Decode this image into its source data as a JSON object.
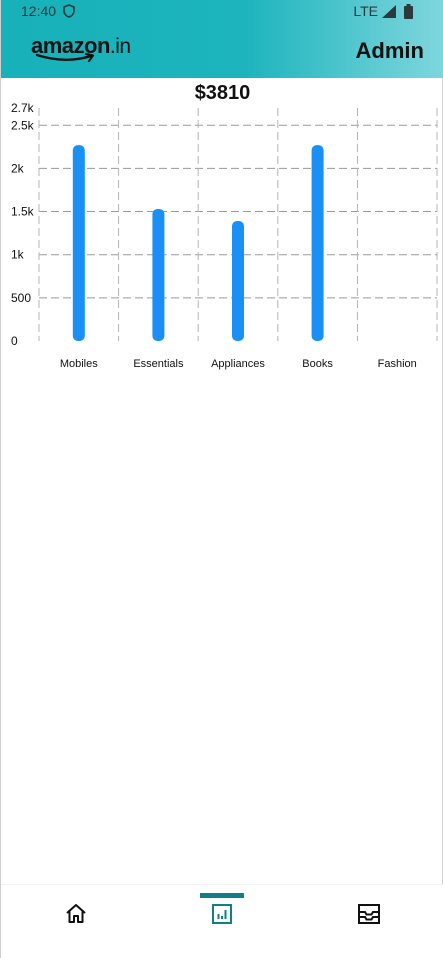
{
  "status_bar": {
    "time": "12:40",
    "network": "LTE",
    "icons": [
      "shield-icon",
      "signal-icon",
      "battery-icon"
    ]
  },
  "header": {
    "logo_text": "amazon",
    "logo_suffix": ".in",
    "role_label": "Admin",
    "gradient": [
      "#17b1ba",
      "#7fd6dd"
    ]
  },
  "total_label": "$3810",
  "chart_data": {
    "type": "bar",
    "categories": [
      "Mobiles",
      "Essentials",
      "Appliances",
      "Books",
      "Fashion"
    ],
    "values": [
      2270,
      1530,
      1390,
      2270,
      0
    ],
    "ylim": [
      0,
      2700
    ],
    "yticks": [
      0,
      500,
      1000,
      1500,
      2000,
      2500,
      2700
    ],
    "ytick_labels": [
      "0",
      "500",
      "1k",
      "1.5k",
      "2k",
      "2.5k",
      "2.7k"
    ],
    "grid": true,
    "bar_color": "#1a8ff5"
  },
  "bottom_nav": {
    "items": [
      {
        "name": "home",
        "icon": "home-icon",
        "active": false
      },
      {
        "name": "analytics",
        "icon": "analytics-icon",
        "active": true
      },
      {
        "name": "orders",
        "icon": "inbox-icon",
        "active": false
      }
    ],
    "active_color": "#0f7f8c"
  }
}
